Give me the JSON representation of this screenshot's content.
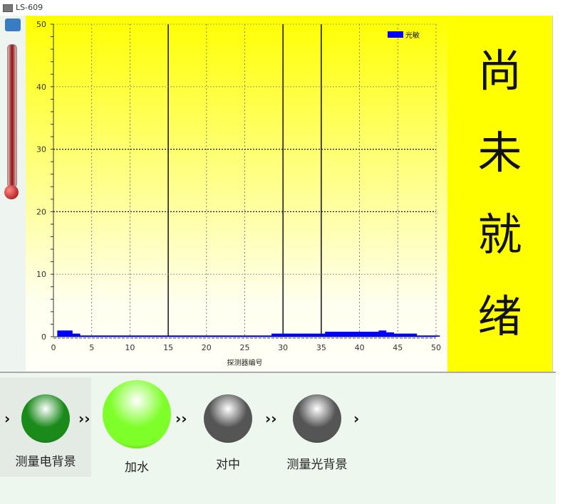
{
  "window": {
    "title": "LS-609"
  },
  "status": {
    "chars": [
      "尚",
      "未",
      "就",
      "绪"
    ],
    "background": "#ffff00"
  },
  "steps": [
    {
      "label": "测量电背景",
      "color": "#1a8a1a",
      "state": "done"
    },
    {
      "label": "加水",
      "color": "#7fff2a",
      "state": "active"
    },
    {
      "label": "对中",
      "color": "#555555",
      "state": "pending"
    },
    {
      "label": "测量光背景",
      "color": "#555555",
      "state": "pending"
    }
  ],
  "chart_data": {
    "type": "area",
    "xlabel": "探测器编号",
    "ylabel": "",
    "xlim": [
      0,
      50
    ],
    "ylim": [
      0,
      50
    ],
    "xticks": [
      "0",
      "5",
      "10",
      "15",
      "20",
      "25",
      "30",
      "35",
      "40",
      "45",
      "50"
    ],
    "yticks": [
      "0",
      "10",
      "20",
      "30",
      "40",
      "50"
    ],
    "grid": true,
    "legend": "top-right",
    "series": [
      {
        "name": "光敏",
        "color": "#0000ff",
        "x": [
          1,
          2,
          3,
          4,
          5,
          6,
          7,
          8,
          9,
          10,
          11,
          12,
          13,
          14,
          15,
          16,
          17,
          18,
          19,
          20,
          21,
          22,
          23,
          24,
          25,
          26,
          27,
          28,
          29,
          30,
          31,
          32,
          33,
          34,
          35,
          36,
          37,
          38,
          39,
          40,
          41,
          42,
          43,
          44,
          45,
          46,
          47,
          48,
          49,
          50
        ],
        "values": [
          1,
          1,
          0.5,
          0.2,
          0.2,
          0.2,
          0.2,
          0.2,
          0.2,
          0.2,
          0.2,
          0.2,
          0.2,
          0.2,
          0.2,
          0.2,
          0.2,
          0.2,
          0.2,
          0.2,
          0.2,
          0.2,
          0.2,
          0.2,
          0.2,
          0.2,
          0.2,
          0.2,
          0.5,
          0.5,
          0.5,
          0.5,
          0.5,
          0.5,
          0.5,
          0.8,
          0.8,
          0.8,
          0.8,
          0.8,
          0.8,
          0.8,
          1,
          0.7,
          0.5,
          0.5,
          0.5,
          0.2,
          0.2,
          0.2
        ]
      }
    ]
  }
}
